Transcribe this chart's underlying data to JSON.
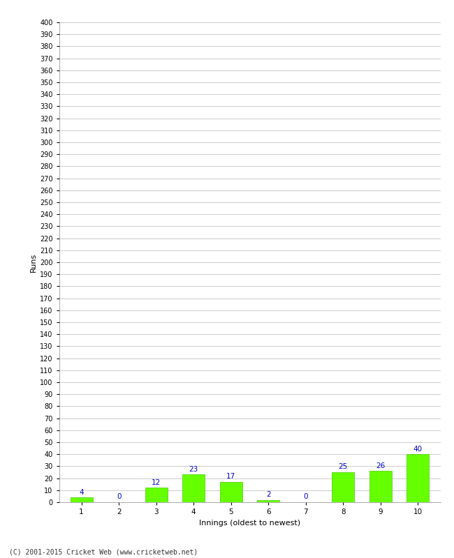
{
  "categories": [
    "1",
    "2",
    "3",
    "4",
    "5",
    "6",
    "7",
    "8",
    "9",
    "10"
  ],
  "values": [
    4,
    0,
    12,
    23,
    17,
    2,
    0,
    25,
    26,
    40
  ],
  "bar_color": "#66ff00",
  "bar_edge_color": "#44cc00",
  "label_color": "#0000cc",
  "xlabel": "Innings (oldest to newest)",
  "ylabel": "Runs",
  "ylim": [
    0,
    400
  ],
  "background_color": "#ffffff",
  "grid_color": "#cccccc",
  "footer": "(C) 2001-2015 Cricket Web (www.cricketweb.net)"
}
